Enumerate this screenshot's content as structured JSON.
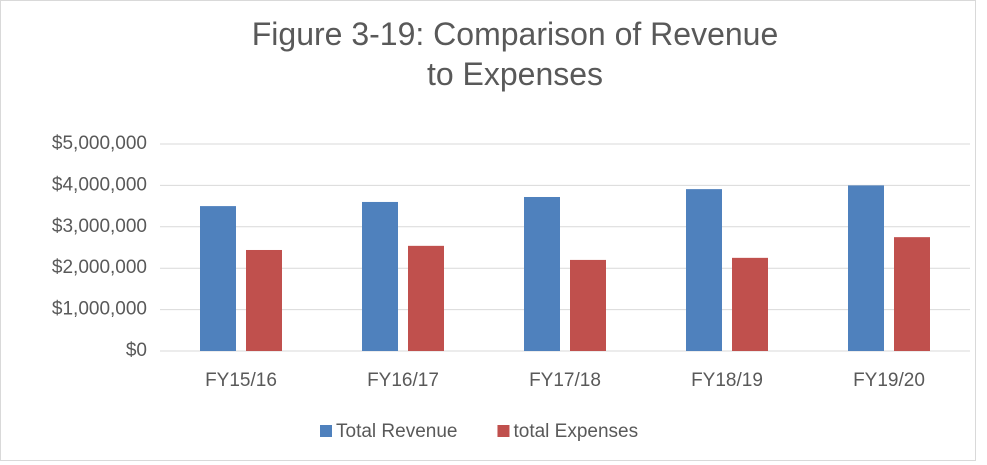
{
  "chart_data": {
    "type": "bar",
    "title": "Figure 3-19: Comparison of Revenue to Expenses",
    "categories": [
      "FY15/16",
      "FY16/17",
      "FY17/18",
      "FY18/19",
      "FY19/20"
    ],
    "series": [
      {
        "name": "Total Revenue",
        "color": "#4f81bd",
        "values": [
          3500000,
          3600000,
          3720000,
          3910000,
          4000000
        ]
      },
      {
        "name": "total Expenses",
        "color": "#c0504d",
        "values": [
          2440000,
          2540000,
          2200000,
          2250000,
          2750000
        ]
      }
    ],
    "ylim": [
      0,
      5000000
    ],
    "yticks": [
      {
        "value": 0,
        "label": "$0"
      },
      {
        "value": 1000000,
        "label": "$1,000,000"
      },
      {
        "value": 2000000,
        "label": "$2,000,000"
      },
      {
        "value": 3000000,
        "label": "$3,000,000"
      },
      {
        "value": 4000000,
        "label": "$4,000,000"
      },
      {
        "value": 5000000,
        "label": "$5,000,000"
      }
    ],
    "grid": true,
    "legend": "bottom"
  }
}
